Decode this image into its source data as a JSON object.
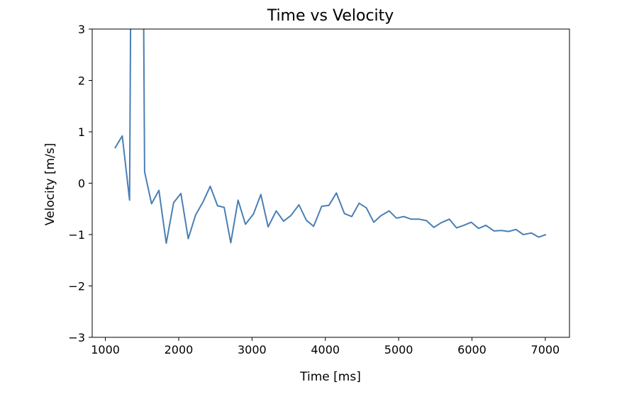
{
  "chart_data": {
    "type": "line",
    "title": "Time vs Velocity",
    "xlabel": "Time [ms]",
    "ylabel": "Velocity [m/s]",
    "xlim": [
      820,
      7330
    ],
    "ylim": [
      -3,
      3
    ],
    "xticks": [
      1000,
      2000,
      3000,
      4000,
      5000,
      6000,
      7000
    ],
    "xtick_labels": [
      "1000",
      "2000",
      "3000",
      "4000",
      "5000",
      "6000",
      "7000"
    ],
    "yticks": [
      3,
      2,
      1,
      0,
      -1,
      -2,
      -3
    ],
    "ytick_labels": [
      "3",
      "2",
      "1",
      "0",
      "−1",
      "−2",
      "−3"
    ],
    "grid": false,
    "line_color": "#4a7fb5",
    "series": [
      {
        "x": [
          1130,
          1230,
          1330,
          1345,
          1520,
          1535,
          1630,
          1730,
          1830,
          1930,
          2030,
          2130,
          2230,
          2330,
          2430,
          2530,
          2620,
          2710,
          2810,
          2910,
          3020,
          3120,
          3220,
          3330,
          3430,
          3530,
          3640,
          3740,
          3840,
          3950,
          4050,
          4150,
          4260,
          4360,
          4460,
          4560,
          4660,
          4760,
          4870,
          4970,
          5070,
          5170,
          5280,
          5380,
          5480,
          5580,
          5690,
          5790,
          5890,
          5990,
          6090,
          6190,
          6300,
          6400,
          6500,
          6600,
          6700,
          6810,
          6910,
          7010
        ],
        "y": [
          0.68,
          0.92,
          -0.33,
          3.5,
          3.5,
          0.22,
          -0.4,
          -0.14,
          -1.17,
          -0.38,
          -0.2,
          -1.08,
          -0.62,
          -0.37,
          -0.06,
          -0.44,
          -0.47,
          -1.16,
          -0.33,
          -0.8,
          -0.6,
          -0.22,
          -0.85,
          -0.54,
          -0.74,
          -0.63,
          -0.42,
          -0.72,
          -0.84,
          -0.45,
          -0.43,
          -0.19,
          -0.59,
          -0.65,
          -0.39,
          -0.48,
          -0.76,
          -0.63,
          -0.54,
          -0.68,
          -0.65,
          -0.7,
          -0.7,
          -0.73,
          -0.86,
          -0.77,
          -0.7,
          -0.87,
          -0.82,
          -0.76,
          -0.88,
          -0.82,
          -0.93,
          -0.92,
          -0.94,
          -0.9,
          -1.0,
          -0.97,
          -1.05,
          -1.0
        ]
      }
    ]
  }
}
